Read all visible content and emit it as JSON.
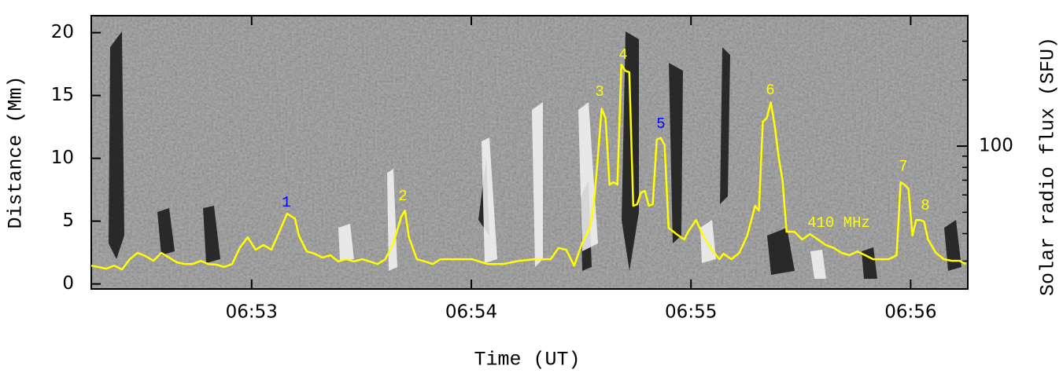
{
  "chart_data": {
    "type": "line",
    "x_label": "Time (UT)",
    "y_label": "Distance (Mm)",
    "y2_label": "Solar radio flux (SFU)",
    "xlim": [
      52.27,
      56.26
    ],
    "xticks": [
      {
        "value": 53,
        "label": "06:53"
      },
      {
        "value": 54,
        "label": "06:54"
      },
      {
        "value": 55,
        "label": "06:55"
      },
      {
        "value": 56,
        "label": "06:56"
      }
    ],
    "ylim": [
      -0.4,
      21.35
    ],
    "yticks": [
      0,
      5,
      10,
      15,
      20
    ],
    "y2lim": [
      22.4,
      392
    ],
    "y2scale": "log",
    "y2ticks": [
      100
    ],
    "y2minorticks": [
      30,
      40,
      50,
      60,
      70,
      80,
      90,
      200,
      300
    ],
    "series": [
      {
        "name": "410 MHz",
        "color": "#ffff00",
        "axis": "y2",
        "x": [
          52.27,
          52.302,
          52.338,
          52.374,
          52.41,
          52.445,
          52.481,
          52.517,
          52.553,
          52.589,
          52.624,
          52.66,
          52.696,
          52.732,
          52.768,
          52.803,
          52.839,
          52.875,
          52.911,
          52.947,
          52.982,
          53.018,
          53.054,
          53.09,
          53.126,
          53.161,
          53.197,
          53.215,
          53.251,
          53.287,
          53.323,
          53.358,
          53.394,
          53.43,
          53.466,
          53.502,
          53.537,
          53.573,
          53.609,
          53.645,
          53.681,
          53.698,
          53.716,
          53.752,
          53.788,
          53.824,
          53.86,
          53.931,
          54.003,
          54.074,
          54.146,
          54.218,
          54.289,
          54.361,
          54.397,
          54.432,
          54.468,
          54.504,
          54.54,
          54.558,
          54.576,
          54.593,
          54.611,
          54.629,
          54.647,
          54.665,
          54.683,
          54.701,
          54.719,
          54.737,
          54.755,
          54.772,
          54.79,
          54.808,
          54.826,
          54.844,
          54.862,
          54.88,
          54.898,
          54.934,
          54.969,
          54.987,
          55.023,
          55.059,
          55.095,
          55.13,
          55.148,
          55.184,
          55.22,
          55.256,
          55.292,
          55.309,
          55.327,
          55.345,
          55.363,
          55.381,
          55.399,
          55.417,
          55.435,
          55.471,
          55.506,
          55.542,
          55.578,
          55.614,
          55.65,
          55.685,
          55.721,
          55.757,
          55.793,
          55.829,
          55.864,
          55.9,
          55.936,
          55.954,
          55.972,
          55.99,
          56.008,
          56.025,
          56.043,
          56.061,
          56.079,
          56.115,
          56.151,
          56.187,
          56.222,
          56.251
        ],
        "values": [
          28.6,
          28.2,
          27.7,
          28.6,
          27.5,
          30.6,
          32.7,
          31.6,
          30.1,
          32.7,
          31.1,
          29.6,
          29.1,
          29.1,
          30.1,
          29.1,
          28.9,
          28.2,
          29.1,
          34.6,
          38.5,
          33.8,
          35.5,
          33.8,
          40.8,
          49.3,
          46.9,
          39.2,
          33.2,
          32.4,
          31.1,
          31.9,
          29.9,
          30.6,
          29.9,
          30.6,
          29.9,
          29.1,
          30.6,
          36.1,
          47.7,
          50.9,
          38.5,
          30.6,
          29.9,
          29.1,
          30.6,
          30.6,
          30.6,
          29.1,
          29.1,
          30.1,
          30.6,
          30.6,
          34.4,
          33.8,
          28.6,
          36.1,
          42.5,
          54.4,
          89.1,
          148,
          134,
          66.8,
          68.5,
          66.8,
          235,
          220,
          217,
          53.5,
          54.4,
          61.5,
          62.5,
          53.5,
          54.4,
          107,
          109,
          101,
          42.5,
          39.8,
          37.6,
          40.8,
          46.1,
          38.5,
          33.8,
          30.6,
          32.4,
          30.6,
          32.7,
          39.2,
          53.5,
          50.9,
          129,
          134,
          158,
          124,
          89.1,
          69.6,
          40.8,
          40.8,
          37.6,
          39.8,
          37.6,
          35.5,
          34.4,
          32.7,
          31.9,
          33.2,
          31.9,
          30.6,
          30.6,
          30.6,
          31.9,
          68.5,
          66.8,
          64.1,
          39.2,
          46.1,
          46.1,
          45.4,
          37.6,
          32.7,
          30.6,
          30.1,
          30.1,
          29.1
        ]
      }
    ],
    "annotations": [
      {
        "text": "1",
        "color": "#0000ff"
      },
      {
        "text": "2",
        "color": "#ffff00"
      },
      {
        "text": "3",
        "color": "#ffff00"
      },
      {
        "text": "4",
        "color": "#ffff00"
      },
      {
        "text": "5",
        "color": "#0000ff"
      },
      {
        "text": "6",
        "color": "#ffff00"
      },
      {
        "text": "7",
        "color": "#ffff00"
      },
      {
        "text": "8",
        "color": "#ffff00"
      }
    ]
  }
}
